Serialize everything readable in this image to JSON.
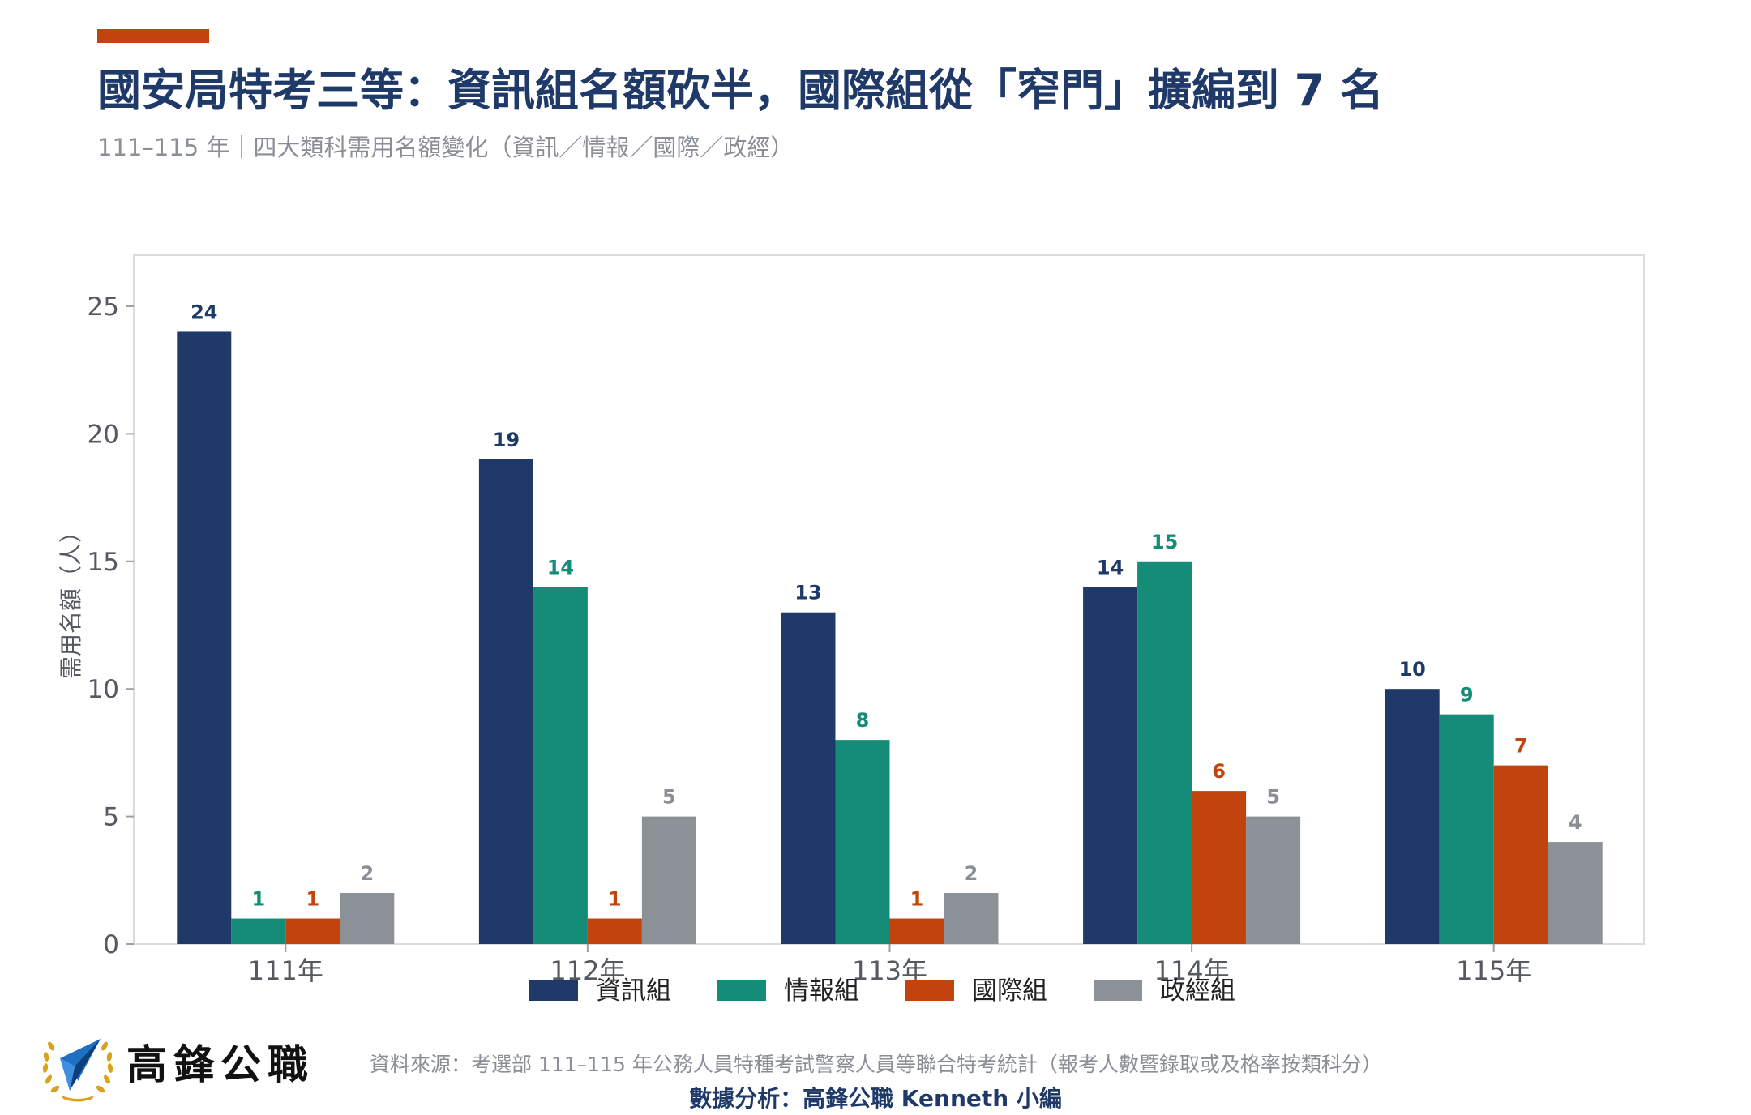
{
  "colors": {
    "accent": "#c1440e",
    "title": "#1f3a68",
    "axis_frame": "#d9dbdf",
    "text_grey": "#8a8f96",
    "tick_text": "#555a61"
  },
  "header": {
    "title": "國安局特考三等：資訊組名額砍半，國際組從「窄門」擴編到 7 名",
    "subtitle": "111–115 年｜四大類科需用名額變化（資訊／情報／國際／政經）"
  },
  "chart_data": {
    "type": "bar",
    "categories": [
      "111年",
      "112年",
      "113年",
      "114年",
      "115年"
    ],
    "series": [
      {
        "name": "資訊組",
        "color": "#1f3a68",
        "values": [
          24,
          19,
          13,
          14,
          10
        ]
      },
      {
        "name": "情報組",
        "color": "#148c78",
        "values": [
          1,
          14,
          8,
          15,
          9
        ]
      },
      {
        "name": "國際組",
        "color": "#c1440e",
        "values": [
          1,
          1,
          1,
          6,
          7
        ]
      },
      {
        "name": "政經組",
        "color": "#8c9198",
        "values": [
          2,
          5,
          2,
          5,
          4
        ]
      }
    ],
    "ylabel": "需用名額（人）",
    "xlabel": "",
    "ylim": [
      0,
      27
    ],
    "yticks": [
      0,
      5,
      10,
      15,
      20,
      25
    ],
    "grid": false,
    "legend_position": "bottom"
  },
  "footer": {
    "brand": "高鋒公職",
    "logo_icon": "paper-plane-laurel-icon",
    "source": "資料來源：考選部 111–115 年公務人員特種考試警察人員等聯合特考統計（報考人數暨錄取或及格率按類科分）",
    "analysis": "數據分析：高鋒公職 Kenneth 小編"
  }
}
